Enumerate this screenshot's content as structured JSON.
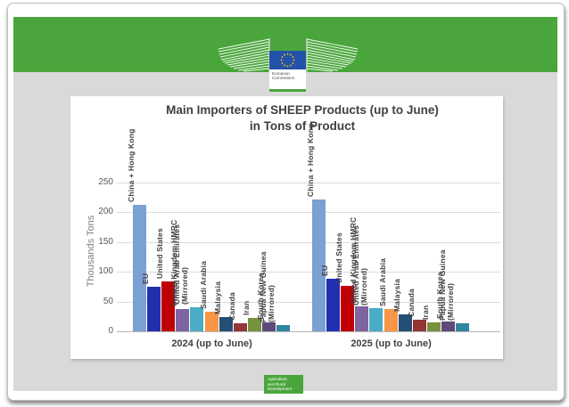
{
  "header": {
    "ec_logo": {
      "line1": "European",
      "line2": "Commission"
    }
  },
  "footer": {
    "badge_lines": [
      "Agriculture",
      "and Rural",
      "Development"
    ]
  },
  "colors": {
    "band_green": "#4aa63c",
    "slide_body_gray": "#d9d9d9",
    "ec_flag_blue": "#2353a8",
    "star_yellow": "#ffd200",
    "title_gray": "#404040"
  },
  "chart_data": {
    "type": "bar",
    "title": "Main Importers of SHEEP Products (up to June)",
    "subtitle": "in Tons of Product",
    "ylabel": "Thousands Tons",
    "ylim": [
      0,
      250
    ],
    "yticks": [
      0,
      50,
      100,
      150,
      200,
      250
    ],
    "grid": true,
    "legend": "none",
    "categories": [
      "China + Hong Kong",
      "EU",
      "United States",
      "United Kingdom HMRC",
      "United Arab Emirates\n(Mirrored)",
      "Saudi Arabia",
      "Malaysia",
      "Canada",
      "Iran",
      "South Korea",
      "Papua New Guinea\n(Mirrored)"
    ],
    "series": [
      {
        "name": "2024 (up to June)",
        "values": [
          213,
          75,
          84,
          38,
          40,
          33,
          24,
          14,
          23,
          15,
          11
        ]
      },
      {
        "name": "2025 (up to June)",
        "values": [
          222,
          88,
          76,
          42,
          39,
          37,
          28,
          20,
          15,
          16,
          14
        ]
      }
    ],
    "bar_colors": [
      "#7ba0d4",
      "#2230ae",
      "#c00000",
      "#8064a2",
      "#4bacc6",
      "#f79646",
      "#254e77",
      "#943634",
      "#76923c",
      "#5f497a",
      "#31859c"
    ]
  }
}
